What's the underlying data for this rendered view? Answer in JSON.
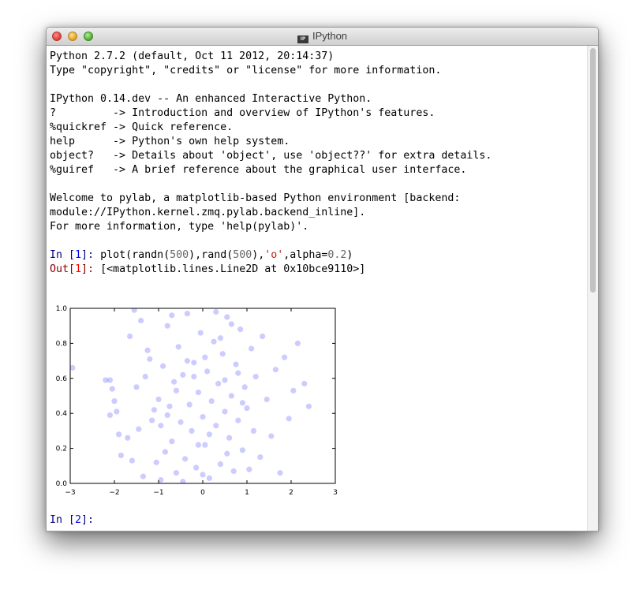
{
  "window": {
    "title": "IPython"
  },
  "banner": [
    "Python 2.7.2 (default, Oct 11 2012, 20:14:37)",
    "Type \"copyright\", \"credits\" or \"license\" for more information.",
    "",
    "IPython 0.14.dev -- An enhanced Interactive Python.",
    "?         -> Introduction and overview of IPython's features.",
    "%quickref -> Quick reference.",
    "help      -> Python's own help system.",
    "object?   -> Details about 'object', use 'object??' for extra details.",
    "%guiref   -> A brief reference about the graphical user interface.",
    "",
    "Welcome to pylab, a matplotlib-based Python environment [backend:",
    "module://IPython.kernel.zmq.pylab.backend_inline].",
    "For more information, type 'help(pylab)'."
  ],
  "cell1": {
    "in_prompt_prefix": "In [",
    "in_number": "1",
    "in_prompt_suffix": "]: ",
    "code_a": "plot(randn(",
    "code_n1": "500",
    "code_b": "),rand(",
    "code_n2": "500",
    "code_c": "),",
    "code_str": "'o'",
    "code_d": ",alpha=",
    "code_n3": "0.2",
    "code_e": ")",
    "out_prompt_prefix": "Out[",
    "out_number": "1",
    "out_prompt_suffix": "]: ",
    "out_text": "[<matplotlib.lines.Line2D at 0x10bce9110>]"
  },
  "cell2": {
    "in_prompt_prefix": "In [",
    "in_number": "2",
    "in_prompt_suffix": "]: "
  },
  "chart_data": {
    "type": "scatter",
    "title": "",
    "xlabel": "",
    "ylabel": "",
    "xlim": [
      -3,
      3
    ],
    "ylim": [
      0.0,
      1.0
    ],
    "xticks": [
      "−3",
      "−2",
      "−1",
      "0",
      "1",
      "2",
      "3"
    ],
    "yticks": [
      "0.0",
      "0.2",
      "0.4",
      "0.6",
      "0.8",
      "1.0"
    ],
    "grid": false,
    "marker": "o",
    "alpha": 0.2,
    "color": "#0000ff",
    "points": [
      [
        -2.95,
        0.66
      ],
      [
        -2.2,
        0.59
      ],
      [
        -2.1,
        0.59
      ],
      [
        -2.1,
        0.39
      ],
      [
        -2.05,
        0.54
      ],
      [
        -2.0,
        0.47
      ],
      [
        -1.95,
        0.41
      ],
      [
        -1.9,
        0.28
      ],
      [
        -1.85,
        0.16
      ],
      [
        -1.7,
        0.26
      ],
      [
        -1.65,
        0.84
      ],
      [
        -1.6,
        0.13
      ],
      [
        -1.55,
        0.99
      ],
      [
        -1.5,
        0.55
      ],
      [
        -1.45,
        0.31
      ],
      [
        -1.4,
        0.93
      ],
      [
        -1.35,
        0.04
      ],
      [
        -1.3,
        0.61
      ],
      [
        -1.2,
        0.71
      ],
      [
        -1.15,
        0.36
      ],
      [
        -1.1,
        0.42
      ],
      [
        -1.05,
        0.12
      ],
      [
        -1.0,
        0.48
      ],
      [
        -0.95,
        0.02
      ],
      [
        -0.9,
        0.67
      ],
      [
        -0.85,
        0.18
      ],
      [
        -0.8,
        0.9
      ],
      [
        -0.75,
        0.44
      ],
      [
        -0.7,
        0.24
      ],
      [
        -0.65,
        0.58
      ],
      [
        -0.6,
        0.06
      ],
      [
        -0.55,
        0.78
      ],
      [
        -0.5,
        0.35
      ],
      [
        -0.45,
        0.62
      ],
      [
        -0.4,
        0.14
      ],
      [
        -0.35,
        0.97
      ],
      [
        -0.3,
        0.45
      ],
      [
        -0.25,
        0.3
      ],
      [
        -0.2,
        0.69
      ],
      [
        -0.15,
        0.09
      ],
      [
        -0.1,
        0.52
      ],
      [
        -0.05,
        0.86
      ],
      [
        0.0,
        0.38
      ],
      [
        0.05,
        0.22
      ],
      [
        0.1,
        0.64
      ],
      [
        0.15,
        0.03
      ],
      [
        0.2,
        0.47
      ],
      [
        0.25,
        0.81
      ],
      [
        0.3,
        0.33
      ],
      [
        0.35,
        0.57
      ],
      [
        0.4,
        0.11
      ],
      [
        0.45,
        0.74
      ],
      [
        0.5,
        0.41
      ],
      [
        0.55,
        0.95
      ],
      [
        0.6,
        0.26
      ],
      [
        0.65,
        0.5
      ],
      [
        0.7,
        0.07
      ],
      [
        0.75,
        0.68
      ],
      [
        0.8,
        0.36
      ],
      [
        0.85,
        0.88
      ],
      [
        0.9,
        0.19
      ],
      [
        0.95,
        0.55
      ],
      [
        1.0,
        0.43
      ],
      [
        1.1,
        0.77
      ],
      [
        1.15,
        0.3
      ],
      [
        1.2,
        0.61
      ],
      [
        1.3,
        0.15
      ],
      [
        1.35,
        0.84
      ],
      [
        1.45,
        0.48
      ],
      [
        1.55,
        0.27
      ],
      [
        1.65,
        0.65
      ],
      [
        1.75,
        0.06
      ],
      [
        1.85,
        0.72
      ],
      [
        1.95,
        0.37
      ],
      [
        2.05,
        0.53
      ],
      [
        2.15,
        0.8
      ],
      [
        2.3,
        0.57
      ],
      [
        2.4,
        0.44
      ],
      [
        -1.25,
        0.76
      ],
      [
        -0.95,
        0.33
      ],
      [
        -0.7,
        0.96
      ],
      [
        -0.45,
        0.01
      ],
      [
        -0.2,
        0.61
      ],
      [
        0.05,
        0.72
      ],
      [
        0.3,
        0.98
      ],
      [
        0.55,
        0.17
      ],
      [
        0.8,
        0.63
      ],
      [
        1.05,
        0.08
      ],
      [
        -0.6,
        0.53
      ],
      [
        -0.1,
        0.22
      ],
      [
        0.4,
        0.83
      ],
      [
        0.9,
        0.46
      ],
      [
        -0.35,
        0.7
      ],
      [
        0.15,
        0.28
      ],
      [
        0.65,
        0.91
      ],
      [
        -0.8,
        0.39
      ],
      [
        0.0,
        0.05
      ],
      [
        0.5,
        0.59
      ]
    ]
  }
}
